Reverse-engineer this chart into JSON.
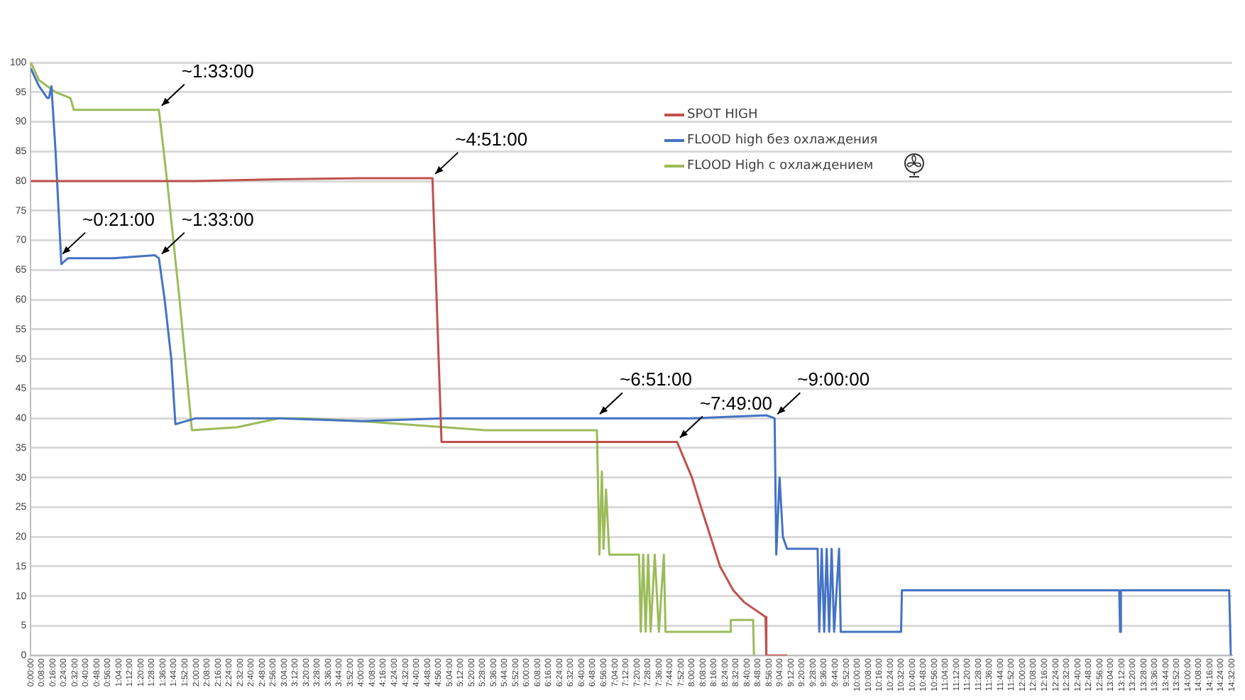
{
  "chart_data": {
    "type": "line",
    "xlim": [
      0,
      14.5333
    ],
    "ylim": [
      0,
      100
    ],
    "yticks": [
      0,
      5,
      10,
      15,
      20,
      25,
      30,
      35,
      40,
      45,
      50,
      55,
      60,
      65,
      70,
      75,
      80,
      85,
      90,
      95,
      100
    ],
    "xticks": [
      {
        "value": 0,
        "label": "0:00:00"
      },
      {
        "value": 0.1333,
        "label": "0:08:00"
      },
      {
        "value": 0.2667,
        "label": "0:16:00"
      },
      {
        "value": 0.4,
        "label": "0:24:00"
      },
      {
        "value": 0.5333,
        "label": "0:32:00"
      },
      {
        "value": 0.6667,
        "label": "0:40:00"
      },
      {
        "value": 0.8,
        "label": "0:48:00"
      },
      {
        "value": 0.9333,
        "label": "0:56:00"
      },
      {
        "value": 1.0667,
        "label": "1:04:00"
      },
      {
        "value": 1.2,
        "label": "1:12:00"
      },
      {
        "value": 1.3333,
        "label": "1:20:00"
      },
      {
        "value": 1.4667,
        "label": "1:28:00"
      },
      {
        "value": 1.6,
        "label": "1:36:00"
      },
      {
        "value": 1.7333,
        "label": "1:44:00"
      },
      {
        "value": 1.8667,
        "label": "1:52:00"
      },
      {
        "value": 2,
        "label": "2:00:00"
      },
      {
        "value": 2.1333,
        "label": "2:08:00"
      },
      {
        "value": 2.2667,
        "label": "2:16:00"
      },
      {
        "value": 2.4,
        "label": "2:24:00"
      },
      {
        "value": 2.5333,
        "label": "2:32:00"
      },
      {
        "value": 2.6667,
        "label": "2:40:00"
      },
      {
        "value": 2.8,
        "label": "2:48:00"
      },
      {
        "value": 2.9333,
        "label": "2:56:00"
      },
      {
        "value": 3.0667,
        "label": "3:04:00"
      },
      {
        "value": 3.2,
        "label": "3:12:00"
      },
      {
        "value": 3.3333,
        "label": "3:20:00"
      },
      {
        "value": 3.4667,
        "label": "3:28:00"
      },
      {
        "value": 3.6,
        "label": "3:36:00"
      },
      {
        "value": 3.7333,
        "label": "3:44:00"
      },
      {
        "value": 3.8667,
        "label": "3:52:00"
      },
      {
        "value": 4,
        "label": "4:00:00"
      },
      {
        "value": 4.1333,
        "label": "4:08:00"
      },
      {
        "value": 4.2667,
        "label": "4:16:00"
      },
      {
        "value": 4.4,
        "label": "4:24:00"
      },
      {
        "value": 4.5333,
        "label": "4:32:00"
      },
      {
        "value": 4.6667,
        "label": "4:40:00"
      },
      {
        "value": 4.8,
        "label": "4:48:00"
      },
      {
        "value": 4.9333,
        "label": "4:56:00"
      },
      {
        "value": 5.0667,
        "label": "5:04:00"
      },
      {
        "value": 5.2,
        "label": "5:12:00"
      },
      {
        "value": 5.3333,
        "label": "5:20:00"
      },
      {
        "value": 5.4667,
        "label": "5:28:00"
      },
      {
        "value": 5.6,
        "label": "5:36:00"
      },
      {
        "value": 5.7333,
        "label": "5:44:00"
      },
      {
        "value": 5.8667,
        "label": "5:52:00"
      },
      {
        "value": 6,
        "label": "6:00:00"
      },
      {
        "value": 6.1333,
        "label": "6:08:00"
      },
      {
        "value": 6.2667,
        "label": "6:16:00"
      },
      {
        "value": 6.4,
        "label": "6:24:00"
      },
      {
        "value": 6.5333,
        "label": "6:32:00"
      },
      {
        "value": 6.6667,
        "label": "6:40:00"
      },
      {
        "value": 6.8,
        "label": "6:48:00"
      },
      {
        "value": 6.9333,
        "label": "6:56:00"
      },
      {
        "value": 7.0667,
        "label": "7:04:00"
      },
      {
        "value": 7.2,
        "label": "7:12:00"
      },
      {
        "value": 7.3333,
        "label": "7:20:00"
      },
      {
        "value": 7.4667,
        "label": "7:28:00"
      },
      {
        "value": 7.6,
        "label": "7:36:00"
      },
      {
        "value": 7.7333,
        "label": "7:44:00"
      },
      {
        "value": 7.8667,
        "label": "7:52:00"
      },
      {
        "value": 8,
        "label": "8:00:00"
      },
      {
        "value": 8.1333,
        "label": "8:08:00"
      },
      {
        "value": 8.2667,
        "label": "8:16:00"
      },
      {
        "value": 8.4,
        "label": "8:24:00"
      },
      {
        "value": 8.5333,
        "label": "8:32:00"
      },
      {
        "value": 8.6667,
        "label": "8:40:00"
      },
      {
        "value": 8.8,
        "label": "8:48:00"
      },
      {
        "value": 8.9333,
        "label": "8:56:00"
      },
      {
        "value": 9.0667,
        "label": "9:04:00"
      },
      {
        "value": 9.2,
        "label": "9:12:00"
      },
      {
        "value": 9.3333,
        "label": "9:20:00"
      },
      {
        "value": 9.4667,
        "label": "9:28:00"
      },
      {
        "value": 9.6,
        "label": "9:36:00"
      },
      {
        "value": 9.7333,
        "label": "9:44:00"
      },
      {
        "value": 9.8667,
        "label": "9:52:00"
      },
      {
        "value": 10,
        "label": "10:00:00"
      },
      {
        "value": 10.1333,
        "label": "10:08:00"
      },
      {
        "value": 10.2667,
        "label": "10:16:00"
      },
      {
        "value": 10.4,
        "label": "10:24:00"
      },
      {
        "value": 10.5333,
        "label": "10:32:00"
      },
      {
        "value": 10.6667,
        "label": "10:40:00"
      },
      {
        "value": 10.8,
        "label": "10:48:00"
      },
      {
        "value": 10.9333,
        "label": "10:56:00"
      },
      {
        "value": 11.0667,
        "label": "11:04:00"
      },
      {
        "value": 11.2,
        "label": "11:12:00"
      },
      {
        "value": 11.3333,
        "label": "11:20:00"
      },
      {
        "value": 11.4667,
        "label": "11:28:00"
      },
      {
        "value": 11.6,
        "label": "11:36:00"
      },
      {
        "value": 11.7333,
        "label": "11:44:00"
      },
      {
        "value": 11.8667,
        "label": "11:52:00"
      },
      {
        "value": 12,
        "label": "12:00:00"
      },
      {
        "value": 12.1333,
        "label": "12:08:00"
      },
      {
        "value": 12.2667,
        "label": "12:16:00"
      },
      {
        "value": 12.4,
        "label": "12:24:00"
      },
      {
        "value": 12.5333,
        "label": "12:32:00"
      },
      {
        "value": 12.6667,
        "label": "12:40:00"
      },
      {
        "value": 12.8,
        "label": "12:48:00"
      },
      {
        "value": 12.9333,
        "label": "12:56:00"
      },
      {
        "value": 13.0667,
        "label": "13:04:00"
      },
      {
        "value": 13.2,
        "label": "13:12:00"
      },
      {
        "value": 13.3333,
        "label": "13:20:00"
      },
      {
        "value": 13.4667,
        "label": "13:28:00"
      },
      {
        "value": 13.6,
        "label": "13:36:00"
      },
      {
        "value": 13.7333,
        "label": "13:44:00"
      },
      {
        "value": 13.8667,
        "label": "13:52:00"
      },
      {
        "value": 14,
        "label": "14:00:00"
      },
      {
        "value": 14.1333,
        "label": "14:08:00"
      },
      {
        "value": 14.2667,
        "label": "14:16:00"
      },
      {
        "value": 14.4,
        "label": "14:24:00"
      },
      {
        "value": 14.5333,
        "label": "14:32:00"
      }
    ],
    "series": [
      {
        "name": "SPOT HIGH",
        "color": "#c0504d",
        "x": [
          0,
          2,
          3,
          4,
          4.86,
          4.97,
          6,
          7,
          7.82,
          8,
          8.11,
          8.34,
          8.5,
          8.63,
          8.89,
          8.9,
          9.15
        ],
        "values": [
          80,
          80,
          80.3,
          80.5,
          80.5,
          36,
          36,
          36,
          36,
          30,
          25,
          15,
          11,
          9,
          6.5,
          0,
          0
        ]
      },
      {
        "name": "FLOOD high без охлаждения",
        "color": "#4472c4",
        "x": [
          0,
          0.1,
          0.2,
          0.22,
          0.25,
          0.3,
          0.37,
          0.45,
          1,
          1.5,
          1.55,
          1.62,
          1.7,
          1.75,
          2,
          3,
          4,
          5,
          6,
          7,
          8,
          8.9,
          9,
          9.02,
          9.06,
          9.1,
          9.15,
          9.3,
          9.52,
          9.54,
          9.57,
          9.6,
          9.63,
          9.66,
          9.69,
          9.72,
          9.78,
          9.8,
          9.84,
          10.53,
          10.54,
          13.17,
          13.18,
          13.19,
          14.5,
          14.52
        ],
        "values": [
          99,
          96,
          94,
          94,
          96,
          85,
          66,
          67,
          67,
          67.5,
          67,
          60,
          50,
          39,
          40,
          40,
          39.5,
          40,
          40,
          40,
          40,
          40.5,
          40,
          17,
          30,
          20,
          18,
          18,
          18,
          4,
          18,
          4,
          18,
          4,
          18,
          4,
          18,
          4,
          4,
          4,
          11,
          11,
          4,
          11,
          11,
          0
        ]
      },
      {
        "name": "FLOOD High с охлаждением",
        "color": "#9bbb59",
        "x": [
          0,
          0.1,
          0.3,
          0.48,
          0.52,
          1,
          1.3,
          1.55,
          1.65,
          1.8,
          1.95,
          2.5,
          3,
          3.3,
          4,
          4.5,
          5,
          5.5,
          6,
          6.5,
          6.85,
          6.88,
          6.91,
          6.93,
          6.96,
          7,
          7.36,
          7.38,
          7.41,
          7.44,
          7.47,
          7.5,
          7.55,
          7.6,
          7.66,
          7.68,
          8.46,
          8.47,
          8.74,
          8.75
        ],
        "values": [
          100,
          97,
          95,
          94,
          92,
          92,
          92,
          92,
          80,
          60,
          38,
          38.5,
          40,
          40,
          39.5,
          39,
          38.5,
          38,
          38,
          38,
          38,
          17,
          31,
          18,
          28,
          17,
          17,
          4,
          17,
          4,
          17,
          4,
          17,
          4,
          17,
          4,
          4,
          6,
          6,
          0
        ]
      }
    ],
    "annotations": [
      {
        "text": "~1:33:00",
        "x": 1.55,
        "y": 92
      },
      {
        "text": "~0:21:00",
        "x": 0.35,
        "y": 67
      },
      {
        "text": "~1:33:00",
        "x": 1.55,
        "y": 67
      },
      {
        "text": "~4:51:00",
        "x": 4.86,
        "y": 80.5
      },
      {
        "text": "~6:51:00",
        "x": 6.85,
        "y": 40
      },
      {
        "text": "~7:49:00",
        "x": 7.82,
        "y": 36
      },
      {
        "text": "~9:00:00",
        "x": 9,
        "y": 40
      }
    ],
    "grid": "y",
    "legend": "top",
    "line_style": "solid"
  }
}
